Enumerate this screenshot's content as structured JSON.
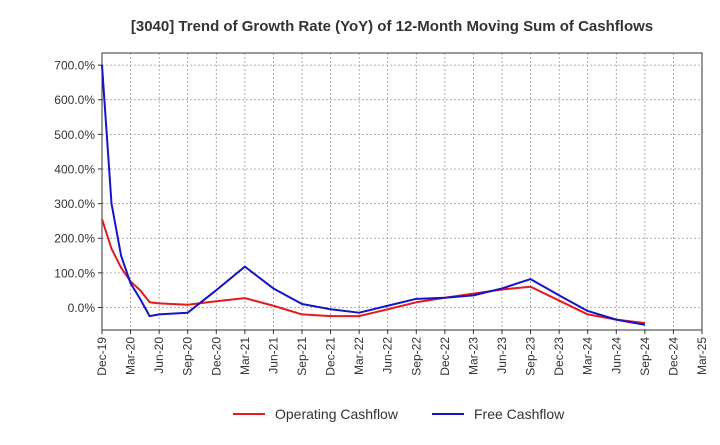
{
  "chart_data": {
    "type": "line",
    "title": "[3040]  Trend of Growth Rate (YoY) of 12-Month Moving Sum of Cashflows",
    "xlabel": "",
    "ylabel": "",
    "x_ticks": [
      "Dec-19",
      "Mar-20",
      "Jun-20",
      "Sep-20",
      "Dec-20",
      "Mar-21",
      "Jun-21",
      "Sep-21",
      "Dec-21",
      "Mar-22",
      "Jun-22",
      "Sep-22",
      "Dec-22",
      "Mar-23",
      "Jun-23",
      "Sep-23",
      "Dec-23",
      "Mar-24",
      "Jun-24",
      "Sep-24",
      "Dec-24",
      "Mar-25"
    ],
    "y_ticks": [
      "0.0%",
      "100.0%",
      "200.0%",
      "300.0%",
      "400.0%",
      "500.0%",
      "600.0%",
      "700.0%"
    ],
    "y_tick_values": [
      0,
      100,
      200,
      300,
      400,
      500,
      600,
      700
    ],
    "ylim": [
      -65,
      735
    ],
    "grid": true,
    "legend_position": "bottom-center",
    "x_index": [
      0,
      0.333,
      0.667,
      1,
      1.333,
      1.667,
      2,
      3,
      4,
      5,
      6,
      7,
      8,
      9,
      10,
      11,
      12,
      13,
      14,
      15,
      16,
      17,
      18,
      19,
      20
    ],
    "series": [
      {
        "name": "Operating Cashflow",
        "color": "#e41a1c",
        "values": [
          255,
          170,
          115,
          75,
          50,
          15,
          12,
          8,
          18,
          27,
          5,
          -20,
          -25,
          -25,
          -5,
          15,
          28,
          40,
          52,
          60,
          20,
          -20,
          -35,
          -45,
          null
        ]
      },
      {
        "name": "Free Cashflow",
        "color": "#1414c8",
        "values": [
          700,
          300,
          150,
          70,
          25,
          -25,
          -20,
          -15,
          50,
          118,
          55,
          10,
          -5,
          -15,
          5,
          25,
          28,
          35,
          55,
          82,
          35,
          -10,
          -35,
          -50,
          null
        ]
      }
    ]
  }
}
